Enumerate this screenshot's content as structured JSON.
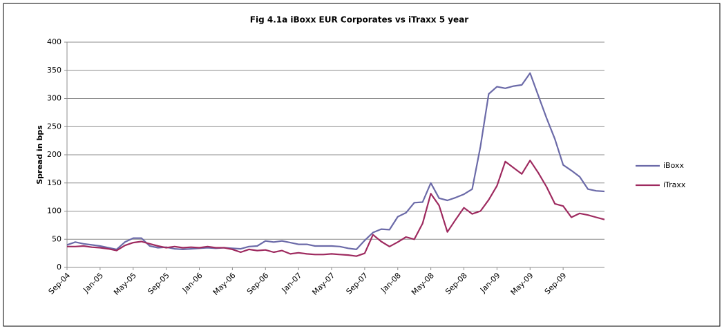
{
  "chart_data": {
    "type": "line",
    "title": "Fig 4.1a iBoxx EUR Corporates vs iTraxx 5 year",
    "y_label": "Spread in bps",
    "categories": [
      "Sep-04",
      null,
      null,
      null,
      "Jan-05",
      null,
      null,
      null,
      "May-05",
      null,
      null,
      null,
      "Sep-05",
      null,
      null,
      null,
      "Jan-06",
      null,
      null,
      null,
      "May-06",
      null,
      null,
      null,
      "Sep-06",
      null,
      null,
      null,
      "Jan-07",
      null,
      null,
      null,
      "May-07",
      null,
      null,
      null,
      "Sep-07",
      null,
      null,
      null,
      "Jan-08",
      null,
      null,
      null,
      "May-08",
      null,
      null,
      null,
      "Sep-08",
      null,
      null,
      null,
      "Jan-09",
      null,
      null,
      null,
      "May-09",
      null,
      null,
      null,
      "Sep-09",
      null,
      null,
      null,
      null,
      null
    ],
    "series": [
      {
        "name": "iBoxx",
        "color": "#6b6aa8",
        "values": [
          40,
          45,
          42,
          40,
          38,
          35,
          32,
          45,
          52,
          52,
          38,
          35,
          36,
          33,
          32,
          33,
          34,
          35,
          34,
          35,
          34,
          33,
          37,
          38,
          47,
          45,
          47,
          44,
          41,
          41,
          38,
          38,
          38,
          37,
          34,
          32,
          48,
          62,
          68,
          67,
          90,
          97,
          115,
          116,
          150,
          123,
          119,
          124,
          130,
          139,
          215,
          308,
          321,
          318,
          322,
          324,
          345,
          305,
          265,
          228,
          182,
          172,
          161,
          139,
          136,
          135
        ]
      },
      {
        "name": "iTraxx",
        "color": "#9e2a5f",
        "values": [
          37,
          37,
          38,
          36,
          35,
          33,
          30,
          39,
          44,
          46,
          42,
          38,
          35,
          37,
          35,
          36,
          35,
          37,
          35,
          35,
          32,
          27,
          32,
          30,
          31,
          27,
          30,
          24,
          26,
          24,
          23,
          23,
          24,
          23,
          22,
          20,
          25,
          58,
          46,
          37,
          45,
          54,
          50,
          78,
          131,
          110,
          63,
          85,
          106,
          95,
          100,
          120,
          145,
          188,
          177,
          166,
          190,
          168,
          143,
          113,
          109,
          89,
          96,
          93,
          89,
          85
        ]
      }
    ],
    "ylim": [
      0,
      400
    ],
    "yticks": [
      0,
      50,
      100,
      150,
      200,
      250,
      300,
      350,
      400
    ],
    "grid": true,
    "legend": "right"
  }
}
